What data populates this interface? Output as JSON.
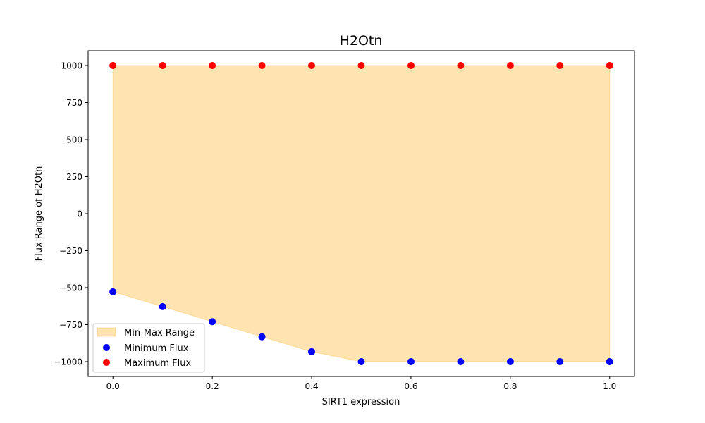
{
  "chart_data": {
    "type": "scatter",
    "title": "H2Otn",
    "xlabel": "SIRT1 expression",
    "ylabel": "Flux Range of H2Otn",
    "xlim": [
      -0.05,
      1.05
    ],
    "ylim": [
      -1100,
      1100
    ],
    "x_ticks": [
      0.0,
      0.2,
      0.4,
      0.6,
      0.8,
      1.0
    ],
    "x_tick_labels": [
      "0.0",
      "0.2",
      "0.4",
      "0.6",
      "0.8",
      "1.0"
    ],
    "y_ticks": [
      1000,
      750,
      500,
      250,
      0,
      -250,
      -500,
      -750,
      -1000
    ],
    "y_tick_labels": [
      "1000",
      "750",
      "500",
      "250",
      "0",
      "−250",
      "−500",
      "−750",
      "−1000"
    ],
    "x": [
      0.0,
      0.1,
      0.2,
      0.3,
      0.4,
      0.5,
      0.6,
      0.7,
      0.8,
      0.9,
      1.0
    ],
    "series": [
      {
        "name": "Minimum Flux",
        "color": "#0000ff",
        "values": [
          -528,
          -628,
          -730,
          -832,
          -933,
          -1000,
          -1000,
          -1000,
          -1000,
          -1000,
          -1000
        ]
      },
      {
        "name": "Maximum Flux",
        "color": "#ff0000",
        "values": [
          1000,
          1000,
          1000,
          1000,
          1000,
          1000,
          1000,
          1000,
          1000,
          1000,
          1000
        ]
      }
    ],
    "fill": {
      "name": "Min-Max Range",
      "color": "#ffa500",
      "alpha": 0.3
    },
    "grid": false,
    "legend_position": "lower-left"
  }
}
